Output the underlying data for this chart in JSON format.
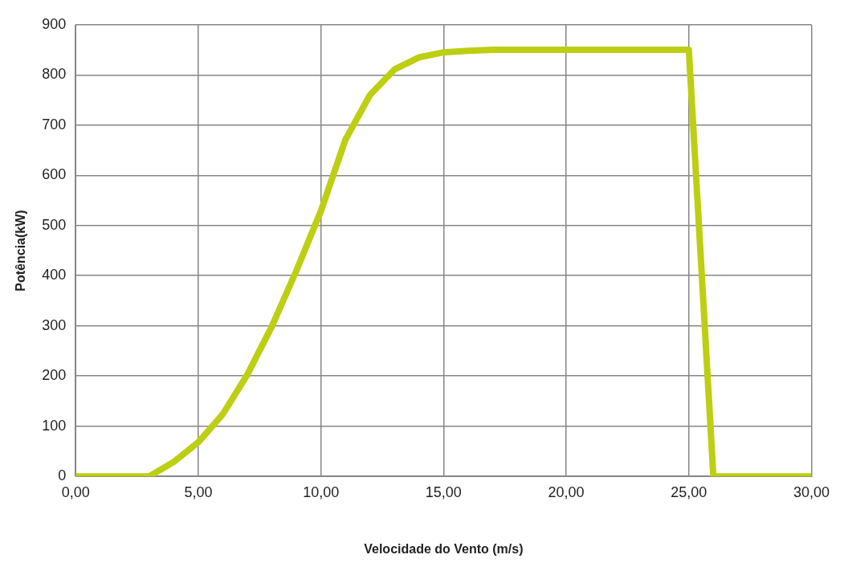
{
  "chart_data": {
    "type": "line",
    "xlabel": "Velocidade do Vento (m/s)",
    "ylabel": "Potência(kW)",
    "x": [
      0,
      1,
      2,
      3,
      4,
      5,
      6,
      7,
      8,
      9,
      10,
      11,
      12,
      13,
      14,
      15,
      16,
      17,
      18,
      19,
      20,
      21,
      22,
      23,
      24,
      25,
      26,
      27,
      28,
      29,
      30
    ],
    "series": [
      {
        "color": "#bccf12",
        "values": [
          0,
          0,
          0,
          0,
          29,
          68,
          124,
          203,
          299,
          410,
          529,
          671,
          760,
          811,
          835,
          845,
          848,
          850,
          850,
          850,
          850,
          850,
          850,
          850,
          850,
          850,
          0,
          0,
          0,
          0,
          0
        ]
      }
    ],
    "xlim": [
      0,
      30
    ],
    "xticks": [
      {
        "value": 0,
        "label": "0,00"
      },
      {
        "value": 5,
        "label": "5,00"
      },
      {
        "value": 10,
        "label": "10,00"
      },
      {
        "value": 15,
        "label": "15,00"
      },
      {
        "value": 20,
        "label": "20,00"
      },
      {
        "value": 25,
        "label": "25,00"
      },
      {
        "value": 30,
        "label": "30,00"
      }
    ],
    "ylim": [
      0,
      900
    ],
    "yticks": [
      0,
      100,
      200,
      300,
      400,
      500,
      600,
      700,
      800,
      900
    ],
    "grid": true,
    "legend": false,
    "marker": "none",
    "line_style": "solid"
  }
}
